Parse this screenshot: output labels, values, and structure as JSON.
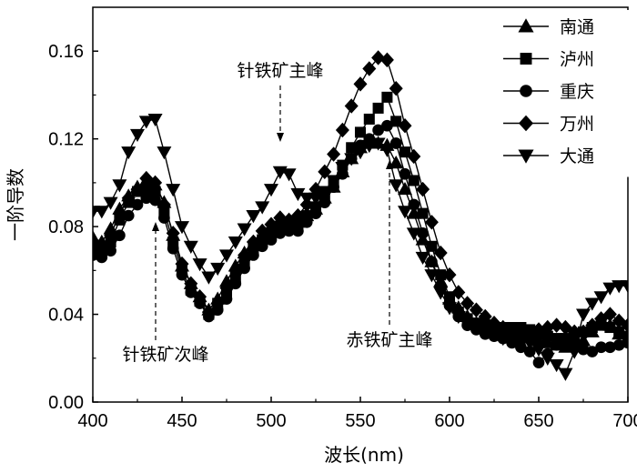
{
  "chart_data": {
    "type": "line",
    "xlabel": "波长(nm)",
    "ylabel": "一阶导数",
    "xlim": [
      400,
      700
    ],
    "ylim": [
      0,
      0.18
    ],
    "x_ticks": [
      "400",
      "450",
      "500",
      "550",
      "600",
      "650",
      "700"
    ],
    "y_ticks": [
      "0.00",
      "0.04",
      "0.08",
      "0.12",
      "0.16"
    ],
    "x_tick_values": [
      400,
      450,
      500,
      550,
      600,
      650,
      700
    ],
    "y_tick_values": [
      0,
      0.04,
      0.08,
      0.12,
      0.16
    ],
    "grid": false,
    "legend_position": "top-right",
    "x": [
      400,
      405,
      410,
      415,
      420,
      425,
      430,
      435,
      440,
      445,
      450,
      455,
      460,
      465,
      470,
      475,
      480,
      485,
      490,
      495,
      500,
      505,
      510,
      515,
      520,
      525,
      530,
      535,
      540,
      545,
      550,
      555,
      560,
      565,
      570,
      575,
      580,
      585,
      590,
      595,
      600,
      605,
      610,
      615,
      620,
      625,
      630,
      635,
      640,
      645,
      650,
      655,
      660,
      665,
      670,
      675,
      680,
      685,
      690,
      695,
      700
    ],
    "series": [
      {
        "name": "南通",
        "marker": "triangle-up",
        "values": [
          0.075,
          0.073,
          0.079,
          0.088,
          0.094,
          0.098,
          0.101,
          0.099,
          0.091,
          0.076,
          0.062,
          0.054,
          0.048,
          0.042,
          0.047,
          0.055,
          0.062,
          0.068,
          0.072,
          0.075,
          0.078,
          0.082,
          0.082,
          0.082,
          0.085,
          0.088,
          0.093,
          0.098,
          0.105,
          0.111,
          0.116,
          0.118,
          0.118,
          0.117,
          0.109,
          0.097,
          0.086,
          0.074,
          0.064,
          0.055,
          0.047,
          0.043,
          0.039,
          0.036,
          0.035,
          0.034,
          0.033,
          0.032,
          0.031,
          0.03,
          0.028,
          0.027,
          0.026,
          0.025,
          0.026,
          0.028,
          0.032,
          0.036,
          0.035,
          0.031,
          0.028
        ]
      },
      {
        "name": "泸州",
        "marker": "square",
        "values": [
          0.071,
          0.069,
          0.073,
          0.083,
          0.091,
          0.096,
          0.097,
          0.096,
          0.087,
          0.073,
          0.06,
          0.051,
          0.046,
          0.04,
          0.045,
          0.05,
          0.057,
          0.064,
          0.07,
          0.074,
          0.077,
          0.08,
          0.08,
          0.081,
          0.085,
          0.089,
          0.094,
          0.101,
          0.108,
          0.116,
          0.123,
          0.129,
          0.134,
          0.139,
          0.128,
          0.114,
          0.101,
          0.086,
          0.071,
          0.058,
          0.048,
          0.041,
          0.038,
          0.036,
          0.035,
          0.034,
          0.034,
          0.034,
          0.034,
          0.033,
          0.031,
          0.03,
          0.029,
          0.029,
          0.029,
          0.032,
          0.034,
          0.035,
          0.034,
          0.032,
          0.03
        ]
      },
      {
        "name": "重庆",
        "marker": "circle",
        "values": [
          0.067,
          0.066,
          0.069,
          0.076,
          0.085,
          0.09,
          0.093,
          0.092,
          0.084,
          0.07,
          0.058,
          0.05,
          0.045,
          0.039,
          0.042,
          0.047,
          0.054,
          0.061,
          0.067,
          0.071,
          0.074,
          0.077,
          0.078,
          0.078,
          0.082,
          0.086,
          0.091,
          0.098,
          0.104,
          0.111,
          0.117,
          0.12,
          0.124,
          0.126,
          0.118,
          0.104,
          0.09,
          0.077,
          0.064,
          0.053,
          0.044,
          0.039,
          0.035,
          0.033,
          0.031,
          0.03,
          0.029,
          0.027,
          0.025,
          0.023,
          0.018,
          0.022,
          0.026,
          0.027,
          0.025,
          0.024,
          0.023,
          0.025,
          0.025,
          0.026,
          0.027
        ]
      },
      {
        "name": "万州",
        "marker": "diamond",
        "values": [
          0.07,
          0.07,
          0.076,
          0.086,
          0.093,
          0.097,
          0.102,
          0.1,
          0.09,
          0.077,
          0.063,
          0.054,
          0.048,
          0.041,
          0.045,
          0.052,
          0.06,
          0.067,
          0.073,
          0.078,
          0.081,
          0.084,
          0.083,
          0.085,
          0.09,
          0.097,
          0.105,
          0.113,
          0.124,
          0.135,
          0.145,
          0.152,
          0.157,
          0.156,
          0.143,
          0.126,
          0.112,
          0.097,
          0.082,
          0.068,
          0.058,
          0.05,
          0.045,
          0.042,
          0.039,
          0.036,
          0.034,
          0.033,
          0.032,
          0.032,
          0.033,
          0.034,
          0.035,
          0.034,
          0.032,
          0.032,
          0.035,
          0.038,
          0.04,
          0.037,
          0.035
        ]
      },
      {
        "name": "大通",
        "marker": "triangle-down",
        "values": [
          0.087,
          0.087,
          0.091,
          0.099,
          0.114,
          0.122,
          0.128,
          0.129,
          0.114,
          0.097,
          0.08,
          0.071,
          0.063,
          0.057,
          0.061,
          0.067,
          0.073,
          0.079,
          0.085,
          0.089,
          0.097,
          0.105,
          0.104,
          0.095,
          0.093,
          0.093,
          0.096,
          0.101,
          0.107,
          0.111,
          0.114,
          0.117,
          0.118,
          0.115,
          0.099,
          0.087,
          0.077,
          0.066,
          0.058,
          0.05,
          0.043,
          0.039,
          0.036,
          0.034,
          0.032,
          0.031,
          0.029,
          0.028,
          0.027,
          0.027,
          0.024,
          0.02,
          0.017,
          0.013,
          0.023,
          0.04,
          0.045,
          0.048,
          0.052,
          0.053,
          0.053
        ]
      }
    ],
    "annotations": [
      {
        "text": "针铁矿主峰",
        "x": 505,
        "y": 0.105,
        "label_position": "above"
      },
      {
        "text": "针铁矿次峰",
        "x": 435,
        "y": 0.092,
        "label_position": "below"
      },
      {
        "text": "赤铁矿主峰",
        "x": 565,
        "y": 0.116,
        "label_position": "below"
      }
    ]
  }
}
